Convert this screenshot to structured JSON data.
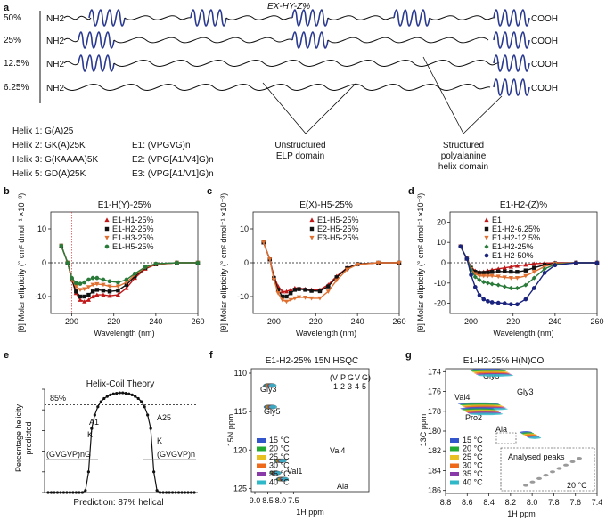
{
  "panels": {
    "a": {
      "letter": "a",
      "title": "EX-HY-Z%",
      "rows": [
        {
          "pct": "50%",
          "nh2": "NH2",
          "cooh": "COOH",
          "helices": 5
        },
        {
          "pct": "25%",
          "nh2": "NH2",
          "cooh": "COOH",
          "helices": 3
        },
        {
          "pct": "12.5%",
          "nh2": "NH2",
          "cooh": "COOH",
          "helices": 2
        },
        {
          "pct": "6.25%",
          "nh2": "NH2",
          "cooh": "COOH",
          "helices": 1
        }
      ],
      "helix_defs": [
        "Helix 1: G(A)25",
        "Helix 2: GK(A)25K",
        "Helix 3: G(KAAAA)5K",
        "Helix 5: GD(A)25K"
      ],
      "elp_defs": [
        "E1: (VPGVG)n",
        "E2: (VPG[A1/V4]G)n",
        "E3: (VPG[A1/V1]G)n"
      ],
      "label_unstructured": [
        "Unstructured",
        "ELP domain"
      ],
      "label_structured": [
        "Structured",
        "polyalanine",
        "helix domain"
      ]
    },
    "b": {
      "letter": "b",
      "title": "E1-H(Y)-25%"
    },
    "c": {
      "letter": "c",
      "title": "E(X)-H5-25%"
    },
    "d": {
      "letter": "d",
      "title": "E1-H2-(Z)%"
    },
    "e": {
      "letter": "e",
      "title": "Helix-Coil Theory",
      "ylabel": [
        "Percentage helicity",
        "predicted"
      ],
      "threshold": "85%",
      "left_label": "(GVGVP)nG",
      "right_label": "(GVGVP)n",
      "markers": [
        "A1",
        "K",
        "A25",
        "K"
      ],
      "prediction": "Prediction: 87% helical"
    },
    "f": {
      "letter": "f",
      "title": "E1-H2-25% 15N HSQC",
      "ylabel": "15N ppm",
      "xlabel": "1H ppm",
      "residues": [
        "(V",
        "P",
        "G",
        "V",
        "G)"
      ],
      "positions": [
        "1",
        "2",
        "3",
        "4",
        "5"
      ],
      "peaks": [
        "Gly3",
        "Gly5",
        "Val4",
        "Val1",
        "Ala"
      ],
      "xticks": [
        "9.0",
        "8.5",
        "8.0",
        "7.5"
      ],
      "yticks": [
        "110",
        "115",
        "120",
        "125"
      ]
    },
    "g": {
      "letter": "g",
      "title": "E1-H2-25% H(N)CO",
      "ylabel": "13C ppm",
      "xlabel": "1H ppm",
      "peaks": [
        "Gly5",
        "Gly3",
        "Val4",
        "Pro2",
        "Ala"
      ],
      "inset_title": "Analysed peaks",
      "inset_temp": "20 °C",
      "xticks": [
        "8.8",
        "8.6",
        "8.4",
        "8.2",
        "8.0",
        "7.8",
        "7.6",
        "7.4"
      ],
      "yticks": [
        "174",
        "176",
        "178",
        "180",
        "182",
        "184",
        "186"
      ]
    },
    "temperatures": [
      {
        "label": "15 °C",
        "color": "#3355cc"
      },
      {
        "label": "20 °C",
        "color": "#22aa33"
      },
      {
        "label": "25 °C",
        "color": "#e8c020"
      },
      {
        "label": "30 °C",
        "color": "#ee6a1a"
      },
      {
        "label": "35 °C",
        "color": "#8a3aa8"
      },
      {
        "label": "40 °C",
        "color": "#2fb8c8"
      }
    ]
  },
  "chart_data": [
    {
      "type": "line",
      "panel": "b",
      "title": "E1-H(Y)-25%",
      "xlabel": "Wavelength (nm)",
      "ylabel": "[θ] Molar ellipticity (° cm² dmol⁻¹ ×10⁻³)",
      "xlim": [
        190,
        260
      ],
      "ylim": [
        -15,
        15
      ],
      "xticks": [
        200,
        220,
        240,
        260
      ],
      "yticks": [
        -10,
        0,
        10
      ],
      "x": [
        195,
        198,
        200,
        202,
        204,
        206,
        208,
        210,
        212,
        215,
        218,
        222,
        226,
        230,
        235,
        240,
        250,
        260
      ],
      "series": [
        {
          "name": "E1-H1-25%",
          "marker": "triangle",
          "color": "#c01818",
          "values": [
            5,
            0,
            -5,
            -9,
            -11,
            -11.5,
            -11,
            -10,
            -9.5,
            -9.5,
            -9.8,
            -9.5,
            -7.5,
            -4.5,
            -1.8,
            -0.5,
            0,
            0
          ]
        },
        {
          "name": "E1-H2-25%",
          "marker": "square",
          "color": "#111111",
          "values": [
            5,
            0,
            -5,
            -8.5,
            -10,
            -10,
            -9.5,
            -8.5,
            -8,
            -8.2,
            -8.5,
            -8.2,
            -6.5,
            -4,
            -1.5,
            -0.4,
            0,
            0
          ]
        },
        {
          "name": "E1-H3-25%",
          "marker": "triangle-down",
          "color": "#e07030",
          "values": [
            5,
            0,
            -5,
            -7,
            -8,
            -7.8,
            -7.2,
            -6.5,
            -6.3,
            -6.5,
            -7,
            -7,
            -5.8,
            -3.6,
            -1.4,
            -0.4,
            0,
            0
          ]
        },
        {
          "name": "E1-H5-25%",
          "marker": "circle",
          "color": "#2a7a3a",
          "values": [
            5,
            0,
            -4.5,
            -6,
            -6.2,
            -5.8,
            -5,
            -4.5,
            -4.5,
            -5,
            -5.5,
            -5.8,
            -5,
            -3.2,
            -1.2,
            -0.3,
            0,
            0
          ]
        }
      ]
    },
    {
      "type": "line",
      "panel": "c",
      "title": "E(X)-H5-25%",
      "xlabel": "Wavelength (nm)",
      "ylabel": "[θ] Molar ellipticity (° cm² dmol⁻¹ ×10⁻³)",
      "xlim": [
        190,
        260
      ],
      "ylim": [
        -15,
        15
      ],
      "xticks": [
        200,
        220,
        240,
        260
      ],
      "yticks": [
        -10,
        0,
        10
      ],
      "x": [
        195,
        198,
        200,
        202,
        204,
        206,
        208,
        210,
        212,
        215,
        218,
        222,
        226,
        230,
        235,
        240,
        250,
        260
      ],
      "series": [
        {
          "name": "E1-H5-25%",
          "marker": "triangle",
          "color": "#c01818",
          "values": [
            6,
            1,
            -4,
            -7,
            -8.5,
            -8.5,
            -8,
            -7.5,
            -7.5,
            -7.8,
            -8,
            -8,
            -6.5,
            -4,
            -1.5,
            -0.4,
            0,
            0
          ]
        },
        {
          "name": "E2-H5-25%",
          "marker": "square",
          "color": "#111111",
          "values": [
            6,
            1,
            -4.5,
            -8,
            -10,
            -10,
            -9,
            -8,
            -7.8,
            -8,
            -8.3,
            -8.4,
            -7,
            -4.3,
            -1.6,
            -0.4,
            0,
            0
          ]
        },
        {
          "name": "E3-H5-25%",
          "marker": "triangle-down",
          "color": "#e07030",
          "values": [
            6,
            1,
            -5,
            -9,
            -11,
            -11.5,
            -11,
            -10.5,
            -10.2,
            -10.3,
            -10.5,
            -10.5,
            -8.5,
            -5.2,
            -2,
            -0.5,
            0,
            0
          ]
        }
      ]
    },
    {
      "type": "line",
      "panel": "d",
      "title": "E1-H2-(Z)%",
      "xlabel": "Wavelength (nm)",
      "ylabel": "[θ] Molar ellipticity (° cm² dmol⁻¹ ×10⁻³)",
      "xlim": [
        190,
        260
      ],
      "ylim": [
        -25,
        25
      ],
      "xticks": [
        200,
        220,
        240,
        260
      ],
      "yticks": [
        -20,
        -10,
        0,
        10,
        20
      ],
      "x": [
        195,
        198,
        200,
        202,
        204,
        206,
        208,
        210,
        213,
        216,
        219,
        222,
        226,
        230,
        235,
        240,
        250,
        260
      ],
      "series": [
        {
          "name": "E1",
          "marker": "triangle",
          "color": "#c01818",
          "values": [
            8,
            2,
            -2,
            -4,
            -4.5,
            -4.5,
            -4,
            -3.5,
            -3,
            -2.5,
            -2,
            -1.5,
            -1,
            -0.5,
            -0.2,
            0,
            0,
            0
          ]
        },
        {
          "name": "E1-H2-6.25%",
          "marker": "square",
          "color": "#111111",
          "values": [
            8,
            2,
            -2.5,
            -4.5,
            -5,
            -5,
            -4.8,
            -4.5,
            -4.3,
            -4.3,
            -4.4,
            -4.5,
            -3.8,
            -2.5,
            -1,
            -0.3,
            0,
            0
          ]
        },
        {
          "name": "E1-H2-12.5%",
          "marker": "triangle-down",
          "color": "#e07030",
          "values": [
            8,
            2,
            -3,
            -5.5,
            -6.5,
            -6.5,
            -6.5,
            -6.5,
            -6.8,
            -7.2,
            -7.5,
            -7.5,
            -6.5,
            -4.5,
            -1.8,
            -0.5,
            0,
            0
          ]
        },
        {
          "name": "E1-H2-25%",
          "marker": "diamond",
          "color": "#2a7a3a",
          "values": [
            8,
            2,
            -3.5,
            -7,
            -8.5,
            -9.5,
            -10,
            -10.5,
            -11,
            -11.8,
            -12.5,
            -12.5,
            -11,
            -7.5,
            -3,
            -0.8,
            0,
            0
          ]
        },
        {
          "name": "E1-H2-50%",
          "marker": "circle",
          "color": "#1a237e",
          "values": [
            8,
            2,
            -6,
            -12,
            -16,
            -18,
            -19,
            -19.5,
            -19.8,
            -20,
            -20.5,
            -20.5,
            -18,
            -12.5,
            -5,
            -1.2,
            0,
            0
          ]
        }
      ]
    },
    {
      "type": "line",
      "panel": "e",
      "title": "Helix-Coil Theory",
      "ylabel": "Percentage helicity predicted",
      "ylim": [
        0,
        100
      ],
      "yticks": [
        0,
        20,
        40,
        60,
        80,
        100
      ],
      "series": [
        {
          "name": "",
          "values": [
            0,
            0,
            0,
            0,
            0,
            0,
            0,
            0,
            0,
            0,
            0,
            0,
            2,
            20,
            62,
            75,
            83,
            88,
            91,
            93,
            94.5,
            95.5,
            96,
            96.5,
            96.5,
            96,
            95.5,
            94.5,
            93,
            91,
            88,
            83,
            75,
            62,
            20,
            2,
            0,
            0,
            0,
            0,
            0,
            0,
            0,
            0,
            0,
            0,
            0,
            0
          ]
        }
      ],
      "threshold": 85
    }
  ]
}
